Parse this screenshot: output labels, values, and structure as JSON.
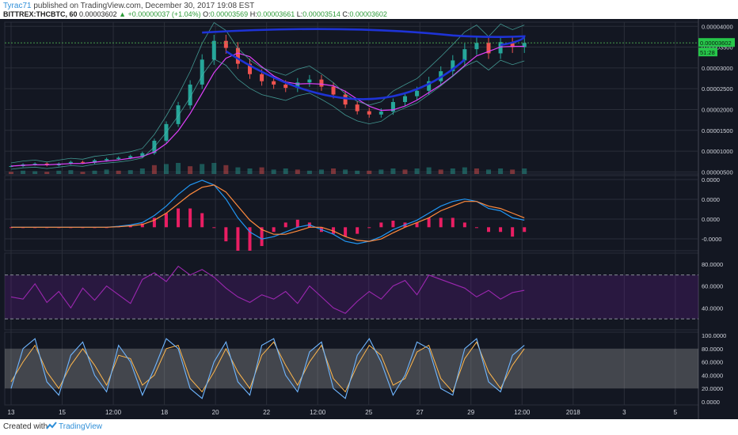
{
  "header": {
    "author": "Tyrac71",
    "published": "published on TradingView.com, December 30, 2017 19:08 EST",
    "symbol": "BITTREX:THCBTC, 60",
    "last": "0.00003602",
    "change": "▲ +0.00000037 (+1.04%)",
    "o_label": "O:",
    "o": "0.00003569",
    "h_label": "H:",
    "h": "0.00003661",
    "l_label": "L:",
    "l": "0.00003514",
    "c_label": "C:",
    "c": "0.00003602"
  },
  "footer": {
    "created": "Created with",
    "brand": "TradingView"
  },
  "colors": {
    "bg": "#131722",
    "grid": "#2a2e39",
    "up": "#26a69a",
    "down": "#ef5350",
    "macd": "#2196f3",
    "signal": "#ff8a3d",
    "hist": "#e91e63",
    "rsi": "#9c27b0",
    "stochK": "#6fb6ff",
    "stochD": "#ffb74d",
    "trend": "#1e33d6"
  },
  "chart_data": [
    {
      "type": "line",
      "panel": "price",
      "y_ticks": [
        "0.00004000",
        "0.00003500",
        "0.00003000",
        "0.00002500",
        "0.00002000",
        "0.00001500",
        "0.00001000",
        "0.00000500"
      ],
      "ylim": [
        4.5e-06,
        4.1e-06
      ],
      "price_label": "0.00003602",
      "countdown_label": "51:28",
      "x_ticks": [
        "13",
        "15",
        "12:00",
        "18",
        "20",
        "22",
        "12:00",
        "25",
        "27",
        "29",
        "12:00",
        "2018",
        "3",
        "5"
      ],
      "close": [
        6.4e-06,
        6.8e-06,
        7e-06,
        6.6e-06,
        7e-06,
        7.4e-06,
        7.2e-06,
        7.8e-06,
        8.1e-06,
        8.4e-06,
        8.8e-06,
        9.5e-06,
        1.25e-05,
        1.65e-05,
        2.1e-05,
        2.6e-05,
        3.2e-05,
        3.65e-05,
        3.48e-05,
        3.1e-05,
        2.85e-05,
        2.68e-05,
        2.6e-05,
        2.52e-05,
        2.65e-05,
        2.72e-05,
        2.55e-05,
        2.36e-05,
        2.12e-05,
        1.96e-05,
        1.88e-05,
        1.95e-05,
        2.18e-05,
        2.32e-05,
        2.45e-05,
        2.68e-05,
        2.92e-05,
        3.18e-05,
        3.45e-05,
        3.6e-05,
        3.35e-05,
        3.62e-05,
        3.5e-05,
        3.6e-05
      ],
      "volume": [
        0.2,
        0.3,
        0.25,
        0.2,
        0.3,
        0.35,
        0.2,
        0.3,
        0.4,
        0.3,
        0.35,
        0.5,
        0.8,
        0.9,
        1.0,
        0.7,
        0.9,
        1.0,
        0.8,
        0.6,
        0.5,
        0.6,
        0.4,
        0.5,
        0.4,
        0.3,
        0.4,
        0.5,
        0.4,
        0.3,
        0.3,
        0.4,
        0.5,
        0.4,
        0.5,
        0.6,
        0.4,
        0.5,
        0.6,
        0.5,
        0.4,
        0.5,
        0.4,
        0.5
      ]
    },
    {
      "type": "line",
      "panel": "macd",
      "y_ticks": [
        "0.0000",
        "0.0000",
        "0.0000",
        "-0.0000"
      ],
      "macd": [
        0,
        0,
        0,
        0,
        0,
        0,
        0,
        0,
        0,
        0.02,
        0.05,
        0.1,
        0.25,
        0.45,
        0.7,
        0.9,
        1.0,
        0.9,
        0.6,
        0.2,
        -0.1,
        -0.25,
        -0.2,
        -0.1,
        0,
        0.05,
        -0.05,
        -0.15,
        -0.3,
        -0.35,
        -0.3,
        -0.2,
        -0.05,
        0.05,
        0.15,
        0.3,
        0.45,
        0.55,
        0.6,
        0.55,
        0.4,
        0.35,
        0.2,
        0.15
      ],
      "signal": [
        0,
        0,
        0,
        0,
        0,
        0,
        0,
        0,
        0,
        0.01,
        0.03,
        0.06,
        0.15,
        0.3,
        0.5,
        0.7,
        0.85,
        0.9,
        0.75,
        0.45,
        0.15,
        -0.05,
        -0.15,
        -0.15,
        -0.08,
        0,
        0,
        -0.08,
        -0.2,
        -0.28,
        -0.3,
        -0.25,
        -0.12,
        0,
        0.1,
        0.2,
        0.35,
        0.45,
        0.55,
        0.55,
        0.45,
        0.4,
        0.3,
        0.2
      ]
    },
    {
      "type": "line",
      "panel": "rsi",
      "y_ticks": [
        "80.0000",
        "60.0000",
        "40.0000"
      ],
      "ylim": [
        20,
        90
      ],
      "upper": 70,
      "lower": 30,
      "values": [
        50,
        48,
        62,
        45,
        55,
        40,
        58,
        47,
        60,
        52,
        44,
        66,
        72,
        64,
        78,
        70,
        75,
        68,
        58,
        50,
        45,
        52,
        48,
        55,
        44,
        60,
        50,
        40,
        35,
        46,
        55,
        48,
        60,
        65,
        52,
        70,
        66,
        62,
        58,
        50,
        56,
        48,
        54,
        56
      ]
    },
    {
      "type": "line",
      "panel": "stoch",
      "y_ticks": [
        "100.0000",
        "80.0000",
        "60.0000",
        "40.0000",
        "20.0000",
        "0.0000"
      ],
      "ylim": [
        0,
        100
      ],
      "upper": 80,
      "lower": 20,
      "k": [
        20,
        80,
        95,
        30,
        10,
        70,
        90,
        40,
        15,
        85,
        60,
        10,
        50,
        95,
        80,
        20,
        5,
        60,
        90,
        30,
        10,
        85,
        95,
        40,
        15,
        75,
        90,
        20,
        5,
        70,
        95,
        60,
        10,
        40,
        90,
        80,
        20,
        10,
        80,
        95,
        30,
        15,
        70,
        85
      ],
      "d": [
        30,
        60,
        85,
        45,
        20,
        55,
        80,
        55,
        25,
        70,
        65,
        25,
        40,
        80,
        85,
        35,
        15,
        45,
        80,
        45,
        20,
        70,
        90,
        55,
        25,
        60,
        85,
        35,
        15,
        55,
        85,
        70,
        25,
        35,
        75,
        85,
        35,
        15,
        65,
        90,
        45,
        20,
        55,
        80
      ]
    }
  ]
}
